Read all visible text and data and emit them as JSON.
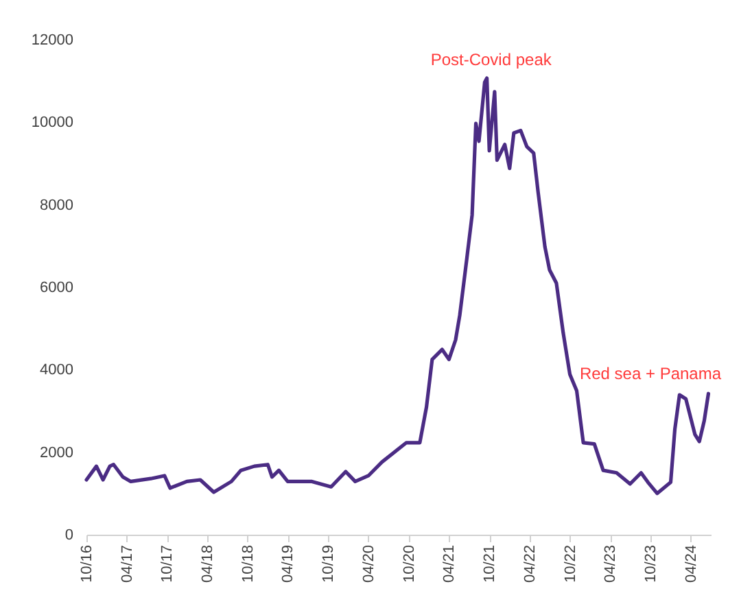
{
  "chart_data": {
    "type": "line",
    "annotations": [
      "Post-Covid peak",
      "Red sea + Panama"
    ],
    "x": [
      "2016-10",
      "2016-11-15",
      "2016-12-15",
      "2017-01-15",
      "2017-02",
      "2017-03-15",
      "2017-04-20",
      "2017-07-20",
      "2017-09-20",
      "2017-10-15",
      "2017-12-30",
      "2018-03",
      "2018-05",
      "2018-07-20",
      "2018-09",
      "2018-11",
      "2019-01",
      "2019-01-20",
      "2019-02-20",
      "2019-04",
      "2019-07-20",
      "2019-10-15",
      "2019-12-20",
      "2020-02",
      "2020-04",
      "2020-06",
      "2020-09-20",
      "2020-11-20",
      "2020-12-20",
      "2021-01-15",
      "2021-03",
      "2021-04",
      "2021-05",
      "2021-05-20",
      "2021-06-20",
      "2021-07-15",
      "2021-08",
      "2021-08-15",
      "2021-09-10",
      "2021-09-20",
      "2021-10",
      "2021-10-25",
      "2021-11-05",
      "2021-12-10",
      "2022-01",
      "2022-01-20",
      "2022-02-20",
      "2022-03-20",
      "2022-04-20",
      "2022-05-10",
      "2022-06-10",
      "2022-07",
      "2022-08",
      "2022-09",
      "2022-10",
      "2022-11",
      "2022-12",
      "2023-01-20",
      "2023-03",
      "2023-05",
      "2023-07",
      "2023-08-20",
      "2023-09-20",
      "2023-11",
      "2024-01",
      "2024-01-20",
      "2024-02-10",
      "2024-03-10",
      "2024-04-20",
      "2024-05-10",
      "2024-06",
      "2024-06-20"
    ],
    "series": [
      {
        "color": "#4b2c84",
        "values": [
          1330,
          1660,
          1330,
          1660,
          1700,
          1400,
          1290,
          1360,
          1430,
          1130,
          1290,
          1330,
          1030,
          1290,
          1560,
          1660,
          1700,
          1400,
          1560,
          1290,
          1290,
          1160,
          1530,
          1290,
          1430,
          1760,
          2230,
          2230,
          3090,
          4250,
          4490,
          4250,
          4720,
          5320,
          6650,
          7750,
          9970,
          9540,
          10970,
          11070,
          9310,
          10740,
          9080,
          9460,
          8880,
          9740,
          9800,
          9410,
          9250,
          8310,
          6980,
          6420,
          6100,
          4890,
          3890,
          3490,
          2230,
          2200,
          1560,
          1500,
          1230,
          1500,
          1270,
          1000,
          1270,
          2560,
          3390,
          3290,
          2430,
          2260,
          2760,
          3420
        ]
      }
    ],
    "xlim": [
      "2016-10",
      "2024-07"
    ],
    "xticks": [
      {
        "value": "2016-10",
        "label": "10/16"
      },
      {
        "value": "2017-04",
        "label": "04/17"
      },
      {
        "value": "2017-10",
        "label": "10/17"
      },
      {
        "value": "2018-04",
        "label": "04/18"
      },
      {
        "value": "2018-10",
        "label": "10/18"
      },
      {
        "value": "2019-04",
        "label": "04/19"
      },
      {
        "value": "2019-10",
        "label": "10/19"
      },
      {
        "value": "2020-04",
        "label": "04/20"
      },
      {
        "value": "2020-10",
        "label": "10/20"
      },
      {
        "value": "2021-04",
        "label": "04/21"
      },
      {
        "value": "2021-10",
        "label": "10/21"
      },
      {
        "value": "2022-04",
        "label": "04/22"
      },
      {
        "value": "2022-10",
        "label": "10/22"
      },
      {
        "value": "2023-04",
        "label": "04/23"
      },
      {
        "value": "2023-10",
        "label": "10/23"
      },
      {
        "value": "2024-04",
        "label": "04/24"
      }
    ],
    "ylim": [
      0,
      12000
    ],
    "yticks": [
      0,
      2000,
      4000,
      6000,
      8000,
      10000,
      12000
    ],
    "grid": false,
    "legend": false,
    "line_style": "solid",
    "marker": "none"
  }
}
